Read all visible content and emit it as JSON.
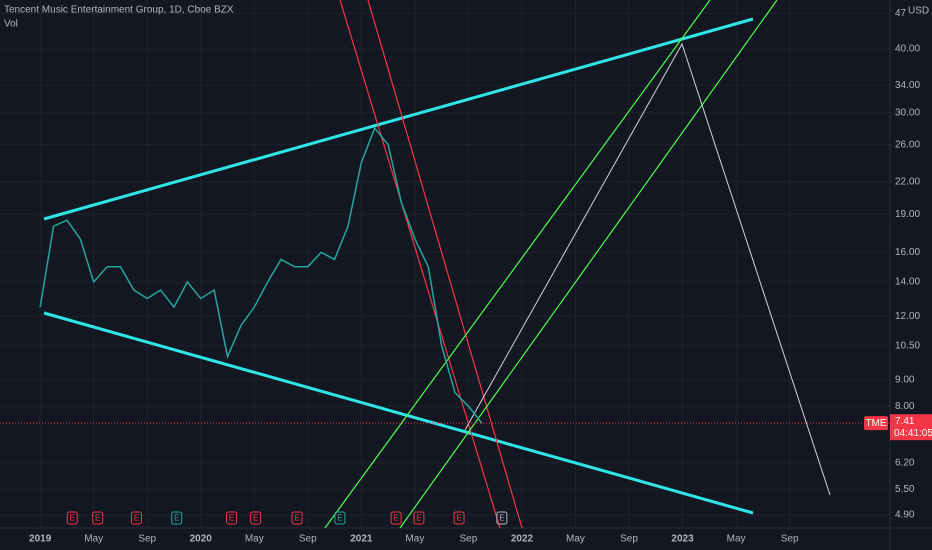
{
  "chart_data": {
    "type": "line",
    "title": "Tencent Music Entertainment Group, 1D, Cboe BZX",
    "subtitle": "Vol",
    "currency": "USD",
    "log_scale": true,
    "grid": true,
    "x": [
      0,
      1,
      2,
      3,
      4,
      5,
      6,
      7,
      8,
      9,
      10,
      11,
      12,
      13,
      14,
      15,
      16,
      17,
      18,
      19,
      20,
      21,
      22,
      23,
      24,
      25,
      26,
      27,
      28,
      29,
      30,
      31,
      32,
      33
    ],
    "series": [
      {
        "name": "TME",
        "color": "#26a69a",
        "values": [
          12.5,
          18,
          18.5,
          17,
          14,
          15,
          15,
          13.5,
          13,
          13.5,
          12.5,
          14,
          13,
          13.5,
          10,
          11.5,
          12.5,
          14,
          15.5,
          15,
          15,
          16,
          15.5,
          18,
          24,
          28,
          26,
          20,
          17,
          15,
          10.5,
          8.5,
          8,
          7.41
        ]
      }
    ],
    "last_price": {
      "symbol": "TME",
      "value": 7.41,
      "label": "7.41",
      "countdown": "04:41:05",
      "color": "#f23645"
    },
    "xlim": [
      -3,
      63.5
    ],
    "xticks": [
      {
        "value": 0,
        "label": "2019"
      },
      {
        "value": 4,
        "label": "May"
      },
      {
        "value": 8,
        "label": "Sep"
      },
      {
        "value": 12,
        "label": "2020"
      },
      {
        "value": 16,
        "label": "May"
      },
      {
        "value": 20,
        "label": "Sep"
      },
      {
        "value": 24,
        "label": "2021"
      },
      {
        "value": 28,
        "label": "May"
      },
      {
        "value": 32,
        "label": "Sep"
      },
      {
        "value": 36,
        "label": "2022"
      },
      {
        "value": 40,
        "label": "May"
      },
      {
        "value": 44,
        "label": "Sep"
      },
      {
        "value": 48,
        "label": "2023"
      },
      {
        "value": 52,
        "label": "May"
      },
      {
        "value": 56,
        "label": "Sep"
      }
    ],
    "ylim": [
      4.62,
      49.9
    ],
    "yticks": [
      47,
      {
        "value": 40,
        "label": "40.00"
      },
      {
        "value": 34,
        "label": "34.00"
      },
      {
        "value": 30,
        "label": "30.00"
      },
      {
        "value": 26,
        "label": "26.00"
      },
      {
        "value": 22,
        "label": "22.00"
      },
      {
        "value": 19,
        "label": "19.00"
      },
      {
        "value": 16,
        "label": "16.00"
      },
      {
        "value": 14,
        "label": "14.00"
      },
      {
        "value": 12,
        "label": "12.00"
      },
      {
        "value": 10.5,
        "label": "10.50"
      },
      {
        "value": 9,
        "label": "9.00"
      },
      {
        "value": 8,
        "label": "8.00"
      },
      {
        "value": 6.2,
        "label": "6.20"
      },
      {
        "value": 5.5,
        "label": "5.50"
      },
      {
        "value": 4.9,
        "label": "4.90"
      }
    ],
    "earnings_markers": [
      {
        "label": "E",
        "x": 2.4,
        "color": "#f23645"
      },
      {
        "label": "E",
        "x": 4.3,
        "color": "#f23645"
      },
      {
        "label": "E",
        "x": 7.2,
        "color": "#f23645"
      },
      {
        "label": "E",
        "x": 10.2,
        "color": "#22ab94"
      },
      {
        "label": "E",
        "x": 14.3,
        "color": "#f23645"
      },
      {
        "label": "E",
        "x": 16.1,
        "color": "#f23645"
      },
      {
        "label": "E",
        "x": 19.2,
        "color": "#f23645"
      },
      {
        "label": "E",
        "x": 22.4,
        "color": "#22ab94"
      },
      {
        "label": "E",
        "x": 26.6,
        "color": "#f23645"
      },
      {
        "label": "E",
        "x": 28.3,
        "color": "#f23645"
      },
      {
        "label": "E",
        "x": 31.3,
        "color": "#f23645"
      },
      {
        "label": "E",
        "x": 34.5,
        "color": "#b2b5be"
      }
    ]
  }
}
